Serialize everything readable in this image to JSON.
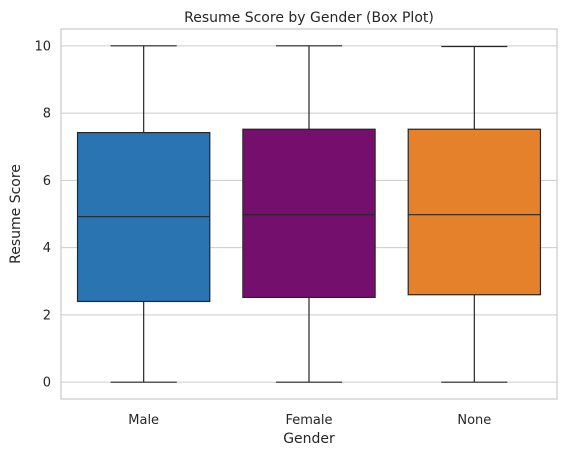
{
  "chart_data": {
    "type": "box",
    "title": "Resume Score by Gender (Box Plot)",
    "xlabel": "Gender",
    "ylabel": "Resume Score",
    "ylim": [
      -0.5,
      10.5
    ],
    "yticks": [
      0,
      2,
      4,
      6,
      8,
      10
    ],
    "grid": true,
    "categories": [
      "Male",
      "Female",
      "None"
    ],
    "boxes": [
      {
        "name": "Male",
        "min": 0,
        "q1": 2.4,
        "median": 4.92,
        "q3": 7.42,
        "max": 10,
        "color": "#2a75b1"
      },
      {
        "name": "Female",
        "min": 0,
        "q1": 2.52,
        "median": 4.98,
        "q3": 7.52,
        "max": 10,
        "color": "#750f6e"
      },
      {
        "name": "None",
        "min": 0,
        "q1": 2.6,
        "median": 4.98,
        "q3": 7.52,
        "max": 9.98,
        "color": "#e5812b"
      }
    ]
  }
}
